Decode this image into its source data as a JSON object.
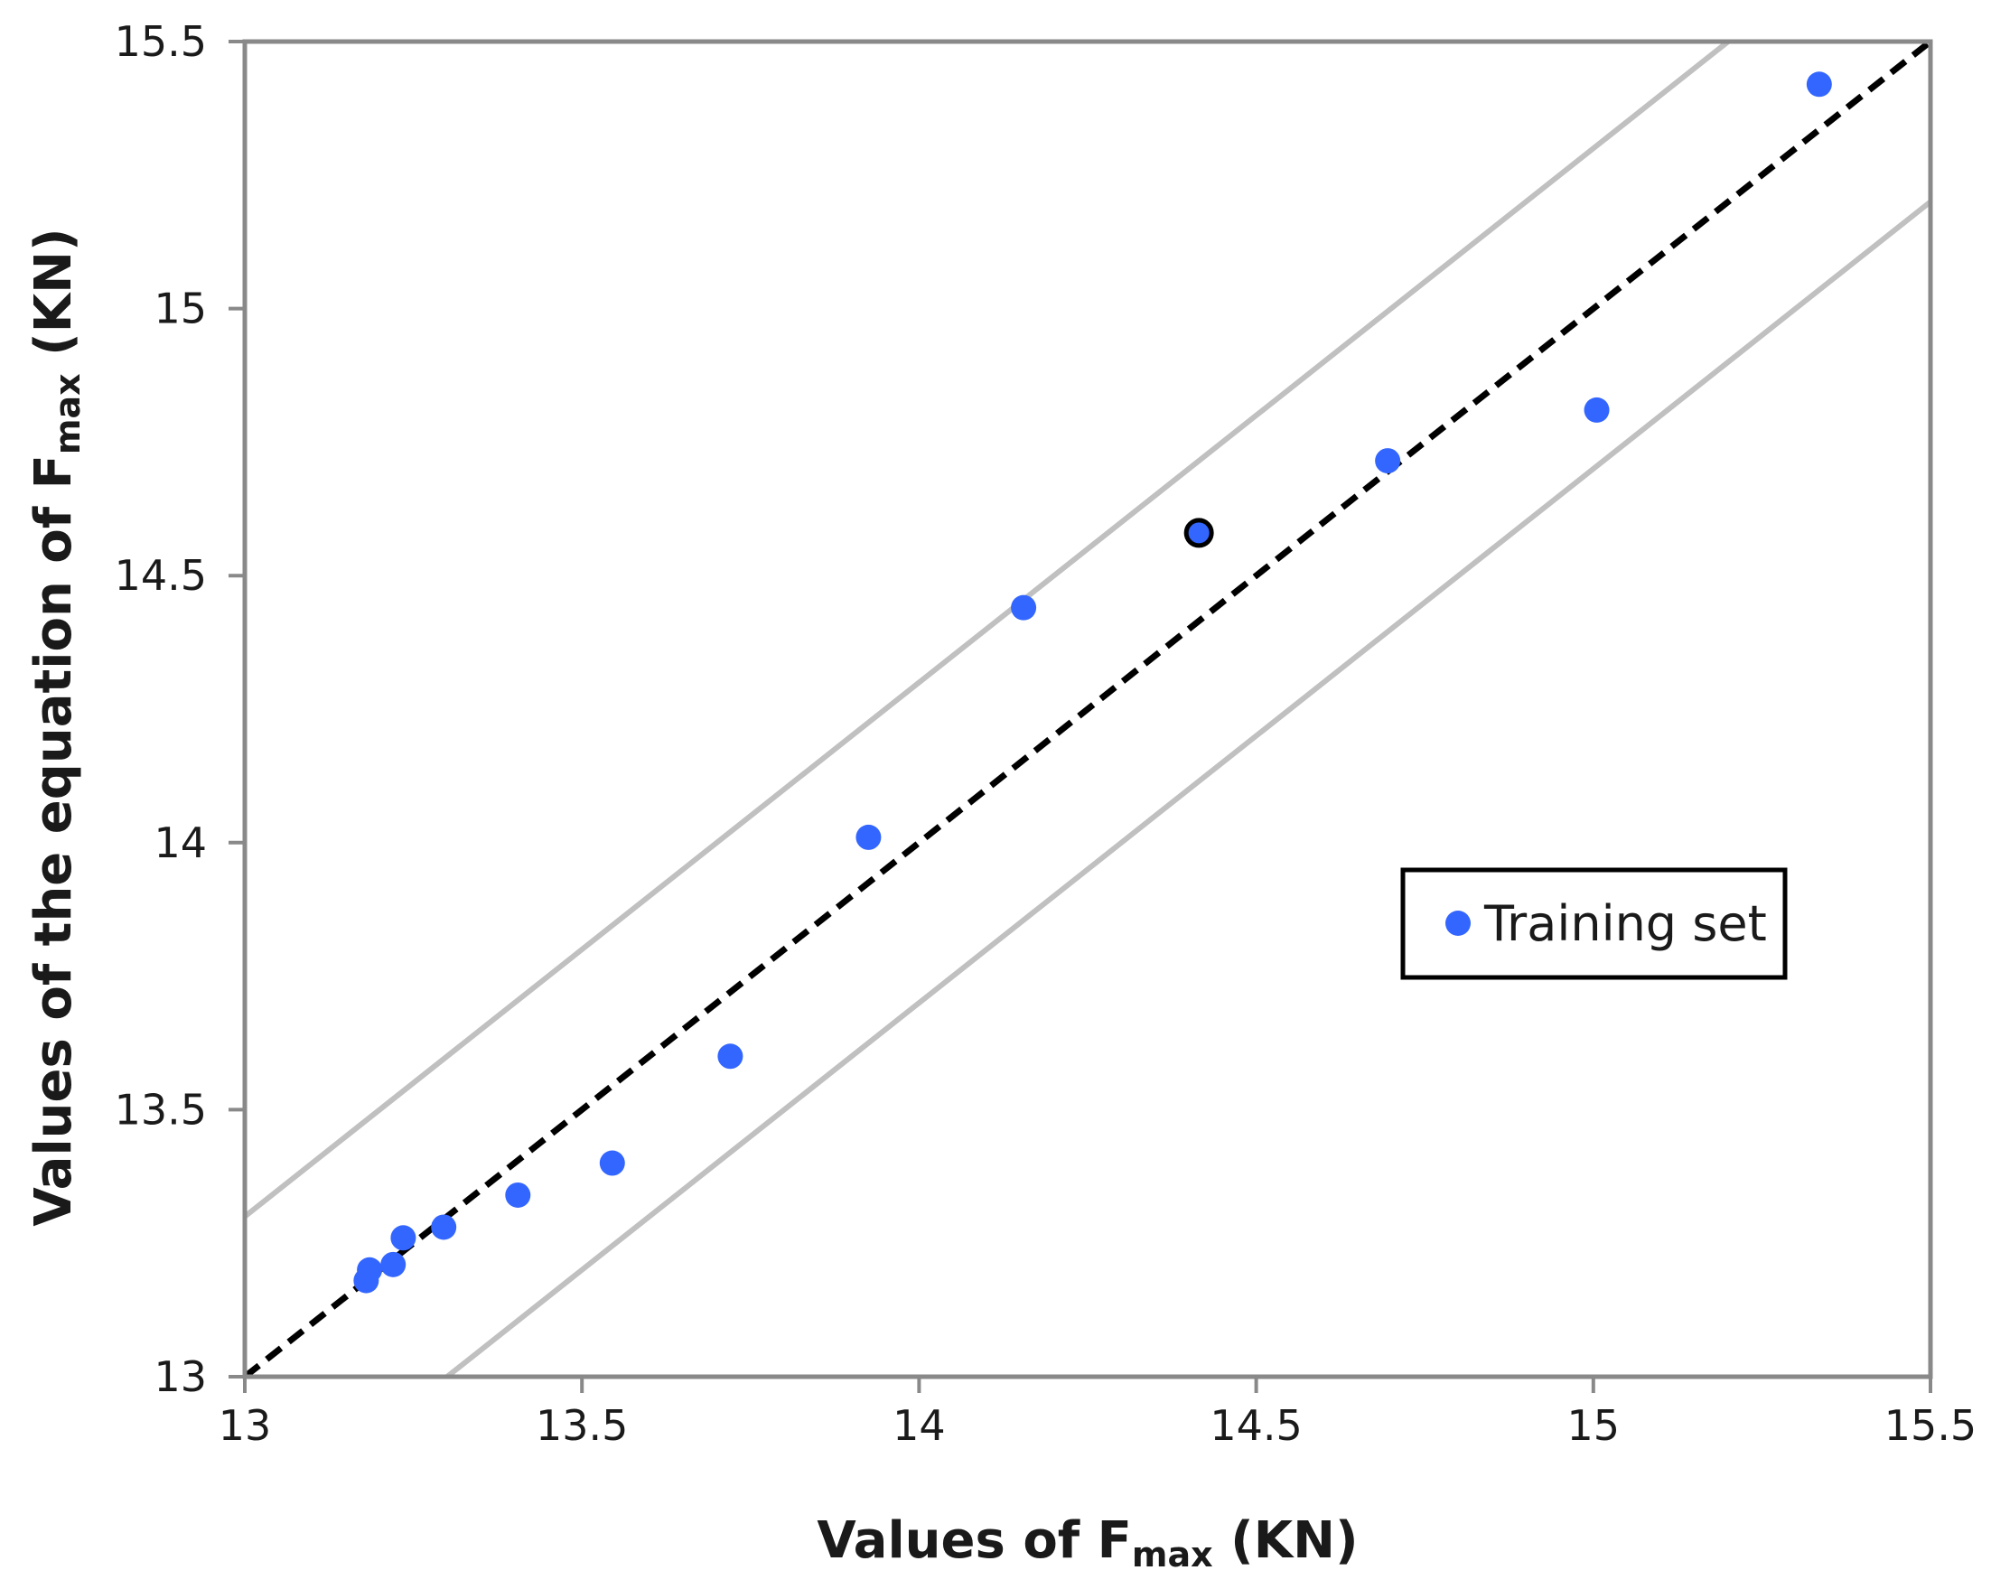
{
  "chart_data": {
    "type": "scatter",
    "xlabel": {
      "prefix": "Values of F",
      "subscript": "max",
      "suffix": " (KN)"
    },
    "ylabel": {
      "prefix": "Values of the equation of F",
      "subscript": "max",
      "suffix": " (KN)"
    },
    "xlim": [
      13,
      15.5
    ],
    "ylim": [
      13,
      15.5
    ],
    "xticks": [
      13,
      13.5,
      14,
      14.5,
      15,
      15.5
    ],
    "yticks": [
      13,
      13.5,
      14,
      14.5,
      15,
      15.5
    ],
    "x_tick_labels": [
      "13",
      "13.5",
      "14",
      "14.5",
      "15",
      "15.5"
    ],
    "y_tick_labels": [
      "13",
      "13.5",
      "14",
      "14.5",
      "15",
      "15.5"
    ],
    "grid": false,
    "legend": {
      "position": "right",
      "entries": [
        "Training set"
      ]
    },
    "series": [
      {
        "name": "Training set",
        "color": "#3366ff",
        "points": [
          {
            "x": 13.18,
            "y": 13.18
          },
          {
            "x": 13.185,
            "y": 13.2
          },
          {
            "x": 13.22,
            "y": 13.21
          },
          {
            "x": 13.235,
            "y": 13.26
          },
          {
            "x": 13.295,
            "y": 13.28
          },
          {
            "x": 13.405,
            "y": 13.34
          },
          {
            "x": 13.545,
            "y": 13.4
          },
          {
            "x": 13.72,
            "y": 13.6
          },
          {
            "x": 13.925,
            "y": 14.01
          },
          {
            "x": 14.155,
            "y": 14.44
          },
          {
            "x": 14.415,
            "y": 14.58,
            "outlined": true
          },
          {
            "x": 14.695,
            "y": 14.715
          },
          {
            "x": 15.005,
            "y": 14.81
          },
          {
            "x": 15.335,
            "y": 15.42
          }
        ]
      }
    ],
    "reference_lines": [
      {
        "name": "y = x",
        "style": "dashed",
        "color": "#000000",
        "offset": 0
      },
      {
        "name": "upper bound",
        "style": "solid",
        "color": "#c0c0c0",
        "offset": 0.3
      },
      {
        "name": "lower bound",
        "style": "solid",
        "color": "#c0c0c0",
        "offset": -0.3
      }
    ]
  }
}
